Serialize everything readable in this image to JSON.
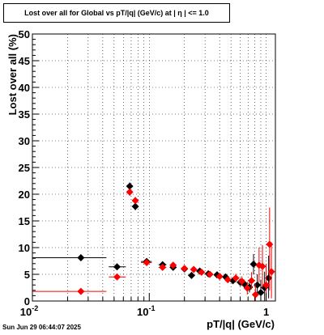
{
  "chart_data": {
    "type": "scatter",
    "title": "Lost over all for Global vs pT/|q| (GeV/c) at |  η  | <= 1.0",
    "xlabel": "pT/|q| (GeV/c)",
    "ylabel": "Lost over all (%)",
    "x_scale": "log",
    "xlim": [
      0.01,
      1.2
    ],
    "ylim": [
      0,
      50
    ],
    "grid": true,
    "x_tick_labels": [
      "10^-2",
      "10^-1",
      "1"
    ],
    "y_tick_labels": [
      "0",
      "5",
      "10",
      "15",
      "20",
      "25",
      "30",
      "35",
      "40",
      "45",
      "50"
    ],
    "series": [
      {
        "color": "#000000",
        "points": [
          {
            "x": 0.026,
            "y": 8.1,
            "xlo": 0.01,
            "xhi": 0.043,
            "ylo": 7.9,
            "yhi": 8.3
          },
          {
            "x": 0.053,
            "y": 6.4,
            "xlo": 0.045,
            "xhi": 0.063,
            "ylo": 6.0,
            "yhi": 6.8
          },
          {
            "x": 0.068,
            "y": 21.5,
            "xlo": 0.064,
            "xhi": 0.072,
            "ylo": 20.8,
            "yhi": 22.2
          },
          {
            "x": 0.076,
            "y": 17.7,
            "xlo": 0.073,
            "xhi": 0.08,
            "ylo": 17.0,
            "yhi": 18.4
          },
          {
            "x": 0.095,
            "y": 7.4,
            "xlo": 0.085,
            "xhi": 0.105,
            "ylo": 7.1,
            "yhi": 7.7
          },
          {
            "x": 0.13,
            "y": 6.8,
            "xlo": 0.12,
            "xhi": 0.14
          },
          {
            "x": 0.16,
            "y": 6.3,
            "xlo": 0.15,
            "xhi": 0.17
          },
          {
            "x": 0.2,
            "y": 6.0,
            "xlo": 0.19,
            "xhi": 0.21
          },
          {
            "x": 0.23,
            "y": 4.8,
            "xlo": 0.22,
            "xhi": 0.24
          },
          {
            "x": 0.27,
            "y": 5.6,
            "xlo": 0.26,
            "xhi": 0.28
          },
          {
            "x": 0.32,
            "y": 5.1,
            "xlo": 0.31,
            "xhi": 0.33
          },
          {
            "x": 0.38,
            "y": 4.9,
            "xlo": 0.37,
            "xhi": 0.39
          },
          {
            "x": 0.45,
            "y": 4.5,
            "xlo": 0.44,
            "xhi": 0.46
          },
          {
            "x": 0.52,
            "y": 3.8,
            "xlo": 0.51,
            "xhi": 0.53,
            "ylo": 3.2,
            "yhi": 4.4
          },
          {
            "x": 0.6,
            "y": 3.5,
            "xlo": 0.59,
            "xhi": 0.61,
            "ylo": 2.8,
            "yhi": 4.2
          },
          {
            "x": 0.65,
            "y": 3.2,
            "xlo": 0.64,
            "xhi": 0.66,
            "ylo": 2.4,
            "yhi": 4.0
          },
          {
            "x": 0.72,
            "y": 2.6,
            "xlo": 0.71,
            "xhi": 0.73,
            "ylo": 1.6,
            "yhi": 3.8
          },
          {
            "x": 0.78,
            "y": 6.9,
            "xlo": 0.77,
            "xhi": 0.79,
            "ylo": 5.0,
            "yhi": 8.8
          },
          {
            "x": 0.84,
            "y": 3.0,
            "xlo": 0.83,
            "xhi": 0.85,
            "ylo": 1.2,
            "yhi": 5.0
          },
          {
            "x": 0.9,
            "y": 1.6,
            "xlo": 0.89,
            "xhi": 0.91,
            "ylo": 0.0,
            "yhi": 4.0
          },
          {
            "x": 0.97,
            "y": 2.5,
            "xlo": 0.96,
            "xhi": 0.98,
            "ylo": 0.0,
            "yhi": 5.5
          },
          {
            "x": 1.05,
            "y": 4.3,
            "xlo": 1.04,
            "xhi": 1.06,
            "ylo": 0.5,
            "yhi": 8.5
          }
        ]
      },
      {
        "color": "#ff0000",
        "points": [
          {
            "x": 0.026,
            "y": 1.8,
            "xlo": 0.01,
            "xhi": 0.043,
            "ylo": 1.6,
            "yhi": 2.0
          },
          {
            "x": 0.053,
            "y": 4.5,
            "xlo": 0.045,
            "xhi": 0.063,
            "ylo": 4.1,
            "yhi": 4.9
          },
          {
            "x": 0.068,
            "y": 20.4,
            "xlo": 0.064,
            "xhi": 0.072,
            "ylo": 19.7,
            "yhi": 21.1
          },
          {
            "x": 0.076,
            "y": 18.8,
            "xlo": 0.073,
            "xhi": 0.08,
            "ylo": 18.1,
            "yhi": 19.5
          },
          {
            "x": 0.095,
            "y": 7.2,
            "xlo": 0.085,
            "xhi": 0.105,
            "ylo": 6.9,
            "yhi": 7.5
          },
          {
            "x": 0.13,
            "y": 6.3,
            "xlo": 0.12,
            "xhi": 0.14
          },
          {
            "x": 0.16,
            "y": 6.7,
            "xlo": 0.15,
            "xhi": 0.17
          },
          {
            "x": 0.2,
            "y": 6.1,
            "xlo": 0.19,
            "xhi": 0.21
          },
          {
            "x": 0.24,
            "y": 5.9,
            "xlo": 0.23,
            "xhi": 0.25
          },
          {
            "x": 0.28,
            "y": 5.4,
            "xlo": 0.27,
            "xhi": 0.29
          },
          {
            "x": 0.33,
            "y": 5.0,
            "xlo": 0.32,
            "xhi": 0.34
          },
          {
            "x": 0.4,
            "y": 4.6,
            "xlo": 0.39,
            "xhi": 0.41
          },
          {
            "x": 0.47,
            "y": 4.0,
            "xlo": 0.46,
            "xhi": 0.48,
            "ylo": 3.4,
            "yhi": 4.6
          },
          {
            "x": 0.55,
            "y": 4.3,
            "xlo": 0.54,
            "xhi": 0.56,
            "ylo": 3.5,
            "yhi": 5.1
          },
          {
            "x": 0.62,
            "y": 3.7,
            "xlo": 0.61,
            "xhi": 0.63,
            "ylo": 2.8,
            "yhi": 4.6
          },
          {
            "x": 0.69,
            "y": 2.4,
            "xlo": 0.68,
            "xhi": 0.7,
            "ylo": 1.2,
            "yhi": 3.6
          },
          {
            "x": 0.75,
            "y": 3.8,
            "xlo": 0.74,
            "xhi": 0.76,
            "ylo": 2.2,
            "yhi": 5.4
          },
          {
            "x": 0.81,
            "y": 1.2,
            "xlo": 0.8,
            "xhi": 0.82,
            "ylo": 0.0,
            "yhi": 3.2
          },
          {
            "x": 0.87,
            "y": 6.7,
            "xlo": 0.86,
            "xhi": 0.88,
            "ylo": 3.5,
            "yhi": 10.0
          },
          {
            "x": 0.93,
            "y": 6.5,
            "xlo": 0.92,
            "xhi": 0.94,
            "ylo": 2.5,
            "yhi": 10.5
          },
          {
            "x": 1.0,
            "y": 3.0,
            "xlo": 0.99,
            "xhi": 1.01,
            "ylo": 0.0,
            "yhi": 7.0
          },
          {
            "x": 1.07,
            "y": 10.6,
            "xlo": 1.06,
            "xhi": 1.08,
            "ylo": 2.0,
            "yhi": 17.5
          },
          {
            "x": 1.11,
            "y": 5.5,
            "xlo": 1.1,
            "xhi": 1.12,
            "ylo": 0.5,
            "yhi": 11.0
          }
        ]
      }
    ]
  },
  "footer": {
    "timestamp": "Sun Jun 29 06:44:07 2025"
  }
}
